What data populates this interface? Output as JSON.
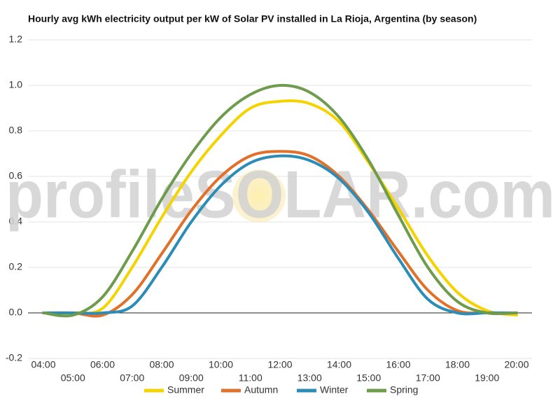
{
  "chart_data": {
    "type": "line",
    "title": "Hourly avg kWh electricity output per kW of Solar PV installed in La Rioja, Argentina (by season)",
    "watermark": "profileSOLAR.com",
    "categories": [
      "04:00",
      "05:00",
      "06:00",
      "07:00",
      "08:00",
      "09:00",
      "10:00",
      "11:00",
      "12:00",
      "13:00",
      "14:00",
      "15:00",
      "16:00",
      "17:00",
      "18:00",
      "19:00",
      "20:00"
    ],
    "series": [
      {
        "name": "Summer",
        "color": "#f5d300",
        "values": [
          0,
          0,
          0.02,
          0.2,
          0.42,
          0.62,
          0.78,
          0.9,
          0.93,
          0.92,
          0.84,
          0.66,
          0.46,
          0.25,
          0.09,
          0.01,
          -0.01
        ]
      },
      {
        "name": "Autumn",
        "color": "#e0702a",
        "values": [
          0,
          0,
          -0.01,
          0.08,
          0.26,
          0.45,
          0.6,
          0.69,
          0.71,
          0.69,
          0.6,
          0.45,
          0.27,
          0.1,
          0.01,
          0,
          0
        ]
      },
      {
        "name": "Winter",
        "color": "#2b8cb8",
        "values": [
          0,
          0,
          0,
          0.03,
          0.2,
          0.4,
          0.56,
          0.66,
          0.69,
          0.67,
          0.59,
          0.44,
          0.24,
          0.06,
          0,
          0,
          0
        ]
      },
      {
        "name": "Spring",
        "color": "#6e9b4c",
        "values": [
          0,
          -0.01,
          0.07,
          0.27,
          0.5,
          0.7,
          0.86,
          0.96,
          1.0,
          0.97,
          0.86,
          0.67,
          0.43,
          0.2,
          0.05,
          0,
          0
        ]
      }
    ],
    "ylim": [
      -0.2,
      1.2
    ],
    "yticks": [
      -0.2,
      {
        "value": 0,
        "label": "0.0"
      },
      0.2,
      0.4,
      0.6,
      0.8,
      {
        "value": 1,
        "label": "1.0"
      },
      1.2
    ],
    "grid": true,
    "legend": "bottom"
  }
}
